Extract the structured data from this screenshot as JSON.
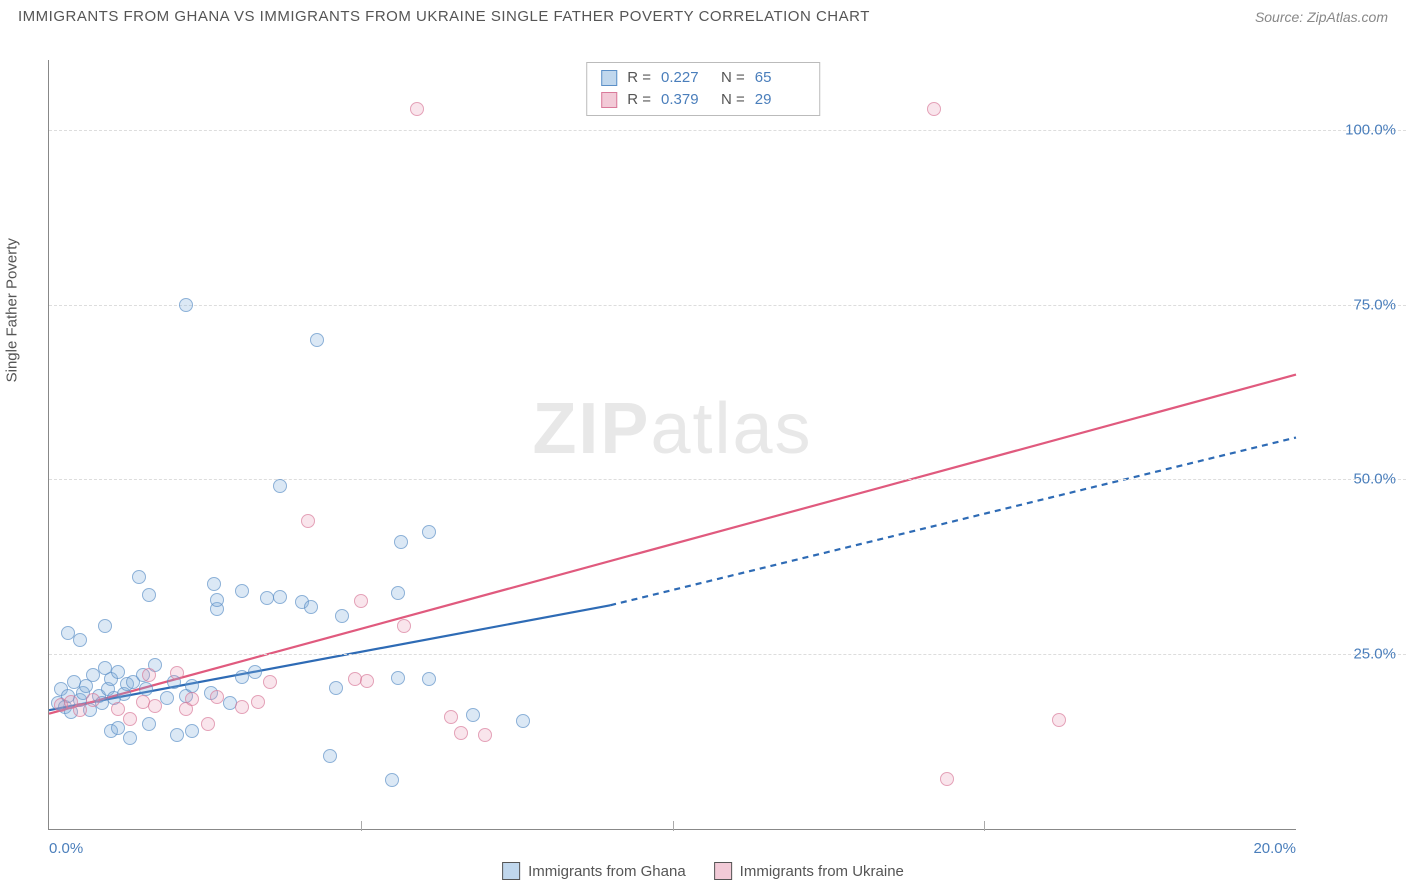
{
  "header": {
    "title": "IMMIGRANTS FROM GHANA VS IMMIGRANTS FROM UKRAINE SINGLE FATHER POVERTY CORRELATION CHART",
    "source": "Source: ZipAtlas.com"
  },
  "watermark": {
    "part1": "ZIP",
    "part2": "atlas"
  },
  "chart": {
    "type": "scatter",
    "background_color": "#ffffff",
    "grid_color": "#dddddd",
    "axis_color": "#888888",
    "xlim": [
      0,
      20
    ],
    "ylim": [
      0,
      110
    ],
    "ylabel": "Single Father Poverty",
    "label_fontsize": 15,
    "tick_fontsize": 15,
    "tick_color": "#4a7ebb",
    "y_ticks": [
      25,
      50,
      75,
      100
    ],
    "y_tick_labels": [
      "25.0%",
      "50.0%",
      "75.0%",
      "100.0%"
    ],
    "x_ticks": [
      0,
      20
    ],
    "x_tick_labels": [
      "0.0%",
      "20.0%"
    ],
    "x_minor_ticks": [
      5,
      10,
      15
    ],
    "marker_size": 14,
    "series": [
      {
        "name": "Immigrants from Ghana",
        "key": "ghana",
        "color_fill": "rgba(130,175,220,0.4)",
        "color_stroke": "#5b8fc7",
        "R": "0.227",
        "N": "65",
        "trend": {
          "x1": 0,
          "y1": 17,
          "x2_solid": 9,
          "y2_solid": 32,
          "x2_dash": 20,
          "y2_dash": 56,
          "color": "#2e6bb5",
          "width": 2.2,
          "dash": "6,5"
        },
        "points": [
          [
            0.15,
            18
          ],
          [
            0.2,
            20
          ],
          [
            0.25,
            17.5
          ],
          [
            0.3,
            19
          ],
          [
            0.35,
            16.8
          ],
          [
            0.4,
            21
          ],
          [
            0.5,
            18.5
          ],
          [
            0.55,
            19.5
          ],
          [
            0.6,
            20.5
          ],
          [
            0.65,
            17
          ],
          [
            0.7,
            22
          ],
          [
            0.8,
            19
          ],
          [
            0.85,
            18
          ],
          [
            0.9,
            23
          ],
          [
            0.95,
            20
          ],
          [
            1.0,
            21.5
          ],
          [
            1.05,
            18.7
          ],
          [
            1.1,
            22.5
          ],
          [
            1.2,
            19.3
          ],
          [
            1.25,
            20.8
          ],
          [
            0.3,
            28
          ],
          [
            0.5,
            27
          ],
          [
            1.0,
            14
          ],
          [
            1.1,
            14.5
          ],
          [
            1.3,
            13
          ],
          [
            1.35,
            21
          ],
          [
            1.5,
            22
          ],
          [
            1.55,
            20
          ],
          [
            1.6,
            15
          ],
          [
            1.7,
            23.5
          ],
          [
            1.9,
            18.8
          ],
          [
            2.0,
            21
          ],
          [
            2.05,
            13.5
          ],
          [
            2.2,
            19
          ],
          [
            2.3,
            20.5
          ],
          [
            2.3,
            14
          ],
          [
            2.6,
            19.5
          ],
          [
            2.65,
            35
          ],
          [
            2.7,
            31.5
          ],
          [
            2.7,
            32.8
          ],
          [
            2.9,
            18
          ],
          [
            3.1,
            34
          ],
          [
            3.1,
            21.8
          ],
          [
            3.3,
            22.4
          ],
          [
            3.5,
            33
          ],
          [
            3.7,
            49
          ],
          [
            3.7,
            33.2
          ],
          [
            4.05,
            32.5
          ],
          [
            4.2,
            31.8
          ],
          [
            4.3,
            70
          ],
          [
            4.5,
            10.5
          ],
          [
            4.6,
            20.2
          ],
          [
            4.7,
            30.5
          ],
          [
            5.5,
            7
          ],
          [
            5.6,
            21.6
          ],
          [
            5.6,
            33.8
          ],
          [
            5.65,
            41
          ],
          [
            6.1,
            42.5
          ],
          [
            6.1,
            21.4
          ],
          [
            6.8,
            16.3
          ],
          [
            7.6,
            15.5
          ],
          [
            1.45,
            36
          ],
          [
            1.6,
            33.5
          ],
          [
            2.2,
            75
          ],
          [
            0.9,
            29
          ]
        ]
      },
      {
        "name": "Immigrants from Ukraine",
        "key": "ukraine",
        "color_fill": "rgba(230,150,175,0.35)",
        "color_stroke": "#d97a9a",
        "R": "0.379",
        "N": "29",
        "trend": {
          "x1": 0,
          "y1": 16.5,
          "x2_solid": 20,
          "y2_solid": 65,
          "x2_dash": 20,
          "y2_dash": 65,
          "color": "#e05a7e",
          "width": 2.2,
          "dash": ""
        },
        "points": [
          [
            0.2,
            17.8
          ],
          [
            0.35,
            18.2
          ],
          [
            0.5,
            17
          ],
          [
            0.7,
            18.4
          ],
          [
            1.1,
            17.2
          ],
          [
            1.3,
            15.8
          ],
          [
            1.5,
            18.1
          ],
          [
            1.6,
            22.1
          ],
          [
            1.7,
            17.6
          ],
          [
            2.05,
            22.3
          ],
          [
            2.2,
            17.1
          ],
          [
            2.3,
            18.6
          ],
          [
            2.55,
            15
          ],
          [
            2.7,
            18.9
          ],
          [
            3.1,
            17.4
          ],
          [
            3.35,
            18.2
          ],
          [
            3.55,
            21
          ],
          [
            4.15,
            44
          ],
          [
            4.9,
            21.5
          ],
          [
            5.0,
            32.6
          ],
          [
            5.1,
            21.2
          ],
          [
            5.7,
            29
          ],
          [
            5.9,
            103
          ],
          [
            6.45,
            16
          ],
          [
            6.6,
            13.8
          ],
          [
            7.0,
            13.5
          ],
          [
            14.2,
            103
          ],
          [
            14.4,
            7.2
          ],
          [
            16.2,
            15.6
          ]
        ]
      }
    ]
  },
  "stats_box": {
    "label_R": "R =",
    "label_N": "N ="
  },
  "legend": {
    "ghana": "Immigrants from Ghana",
    "ukraine": "Immigrants from Ukraine"
  }
}
